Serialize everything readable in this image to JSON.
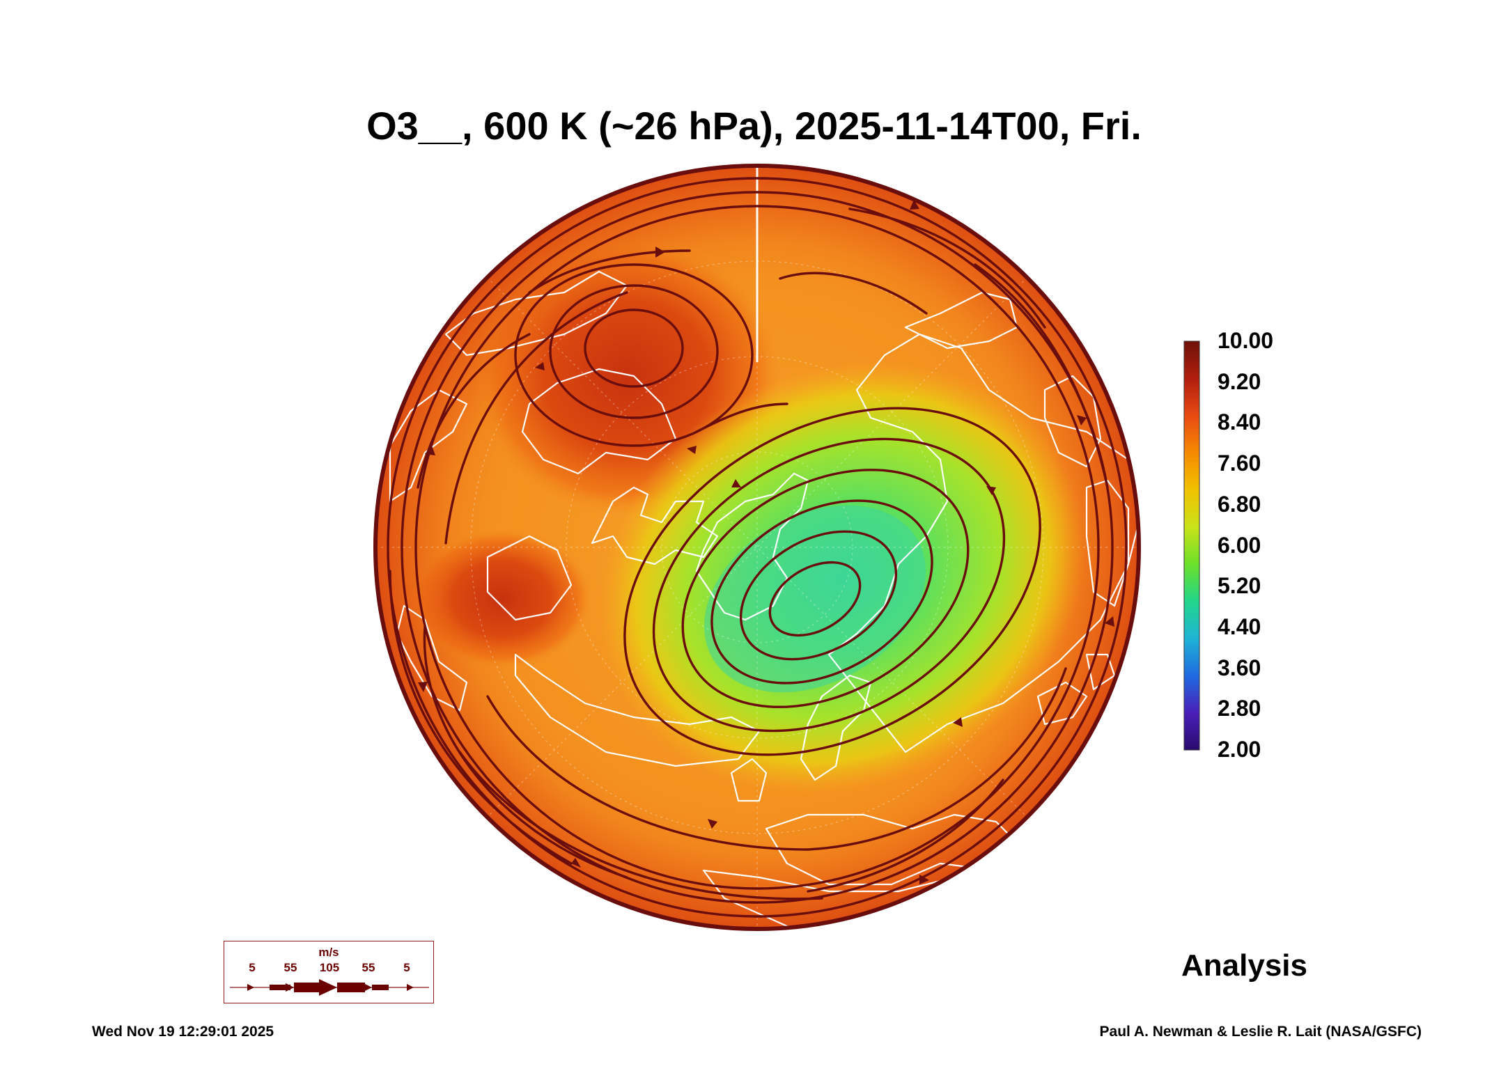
{
  "title": "O3__, 600 K (~26 hPa), 2025-11-14T00, Fri.",
  "colorbar": {
    "labels": [
      "10.00",
      "9.20",
      "8.40",
      "7.60",
      "6.80",
      "6.00",
      "5.20",
      "4.40",
      "3.60",
      "2.80",
      "2.00"
    ],
    "min": 2.0,
    "max": 10.0,
    "colors": [
      "#2a0a6e",
      "#4a1fb8",
      "#1f6be0",
      "#1fb3d6",
      "#22d68a",
      "#6ce02a",
      "#c9e21a",
      "#f2c200",
      "#f58a00",
      "#e84a12",
      "#b01e0e",
      "#6e1208"
    ]
  },
  "wind_key": {
    "units": "m/s",
    "speeds": [
      "5",
      "55",
      "105",
      "55",
      "5"
    ],
    "color": "#6a0000"
  },
  "label": "Analysis",
  "timestamp": "Wed Nov 19 12:29:01 2025",
  "credit": "Paul A. Newman & Leslie R. Lait (NASA/GSFC)",
  "colors": {
    "streamline": "#6a0d0d",
    "coastline": "#ffffff",
    "background_field": "#f39a22",
    "low_ozone": "#57e06a",
    "high_ozone": "#d5420f"
  }
}
